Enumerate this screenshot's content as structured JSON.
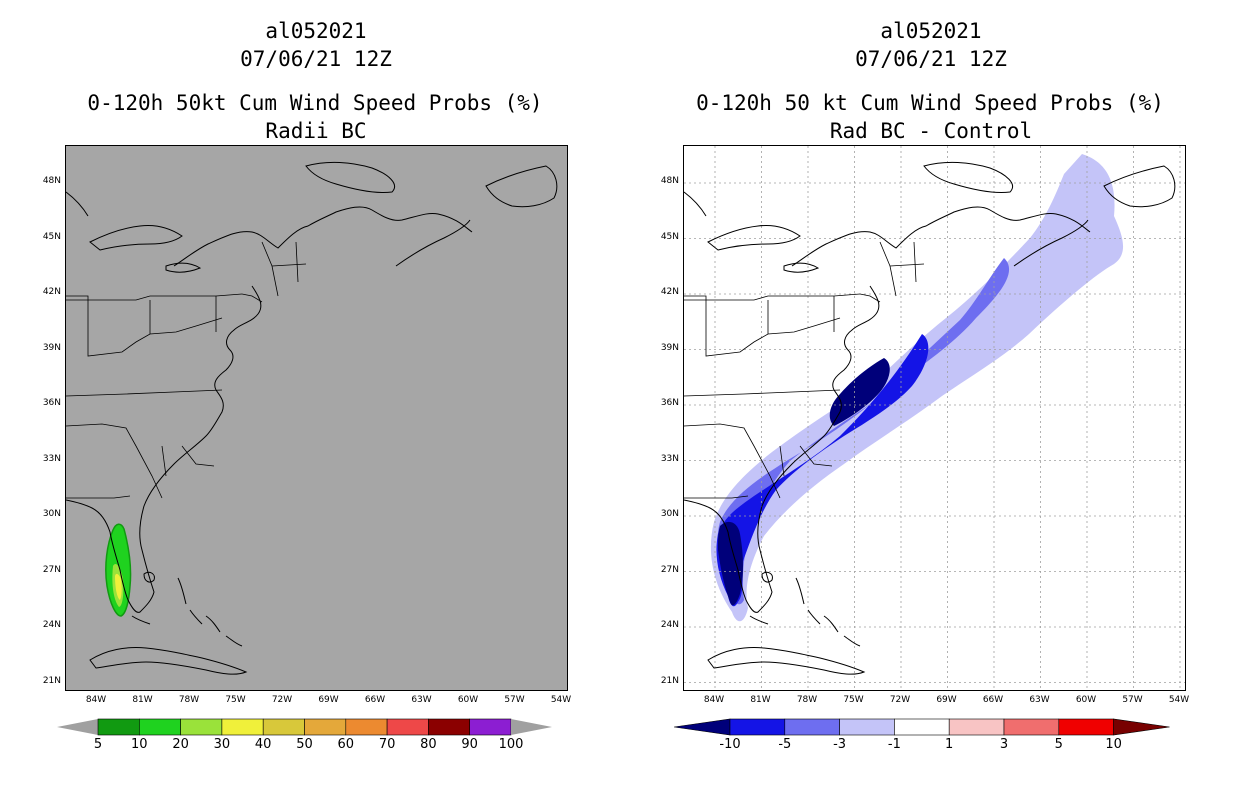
{
  "left": {
    "title_line1": "al052021",
    "title_line2": "07/06/21 12Z",
    "title_line3": "0-120h 50kt Cum Wind Speed Probs (%)",
    "title_line4": "Radii BC",
    "background_color": "#a6a6a6",
    "colorbar_labels": [
      "5",
      "10",
      "20",
      "30",
      "40",
      "50",
      "60",
      "70",
      "80",
      "90",
      "100"
    ],
    "colorbar_colors": [
      "#119a11",
      "#1fd21f",
      "#9ae23a",
      "#f0f03a",
      "#d8c83a",
      "#e4a83a",
      "#ec8a30",
      "#ee4848",
      "#8b0000",
      "#8c1ed2"
    ],
    "colorbar_end_color": "#a0a0a0"
  },
  "right": {
    "title_line1": "al052021",
    "title_line2": "07/06/21 12Z",
    "title_line3": "0-120h 50 kt Cum Wind Speed Probs (%)",
    "title_line4": "Rad BC - Control",
    "background_color": "#ffffff",
    "colorbar_labels": [
      "-10",
      "-5",
      "-3",
      "-1",
      "1",
      "3",
      "5",
      "10"
    ],
    "colorbar_colors": [
      "#00007a",
      "#1414e6",
      "#6e6ef0",
      "#c4c4f8",
      "#ffffff",
      "#f8c4c4",
      "#f06e6e",
      "#f00000",
      "#780000"
    ]
  },
  "lat_labels": [
    "48N",
    "45N",
    "42N",
    "39N",
    "36N",
    "33N",
    "30N",
    "27N",
    "24N",
    "21N"
  ],
  "lon_labels": [
    "84W",
    "81W",
    "78W",
    "75W",
    "72W",
    "69W",
    "66W",
    "63W",
    "60W",
    "57W",
    "54W"
  ]
}
